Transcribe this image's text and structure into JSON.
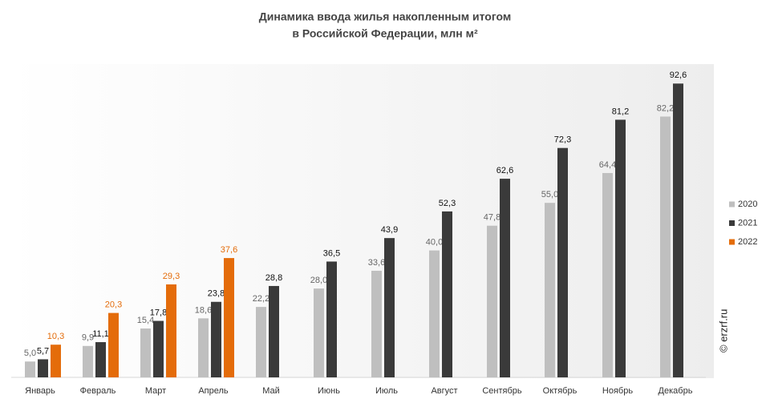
{
  "chart_data": {
    "type": "bar",
    "title": [
      "Динамика ввода жилья накопленным итогом",
      "в Российской Федерации, млн м²"
    ],
    "categories": [
      "Январь",
      "Февраль",
      "Март",
      "Апрель",
      "Май",
      "Июнь",
      "Июль",
      "Август",
      "Сентябрь",
      "Октябрь",
      "Ноябрь",
      "Декабрь"
    ],
    "series": [
      {
        "name": "2020",
        "color": "#bfbfbf",
        "label_color": "#666666",
        "values": [
          5.0,
          9.9,
          15.4,
          18.6,
          22.2,
          28.0,
          33.6,
          40.0,
          47.8,
          55.0,
          64.4,
          82.2
        ],
        "value_labels": [
          "5,0",
          "9,9",
          "15,4",
          "18,6",
          "22,2",
          "28,0",
          "33,6",
          "40,0",
          "47,8",
          "55,0",
          "64,4",
          "82,2"
        ]
      },
      {
        "name": "2021",
        "color": "#3a3a3a",
        "label_color": "#111111",
        "values": [
          5.7,
          11.1,
          17.8,
          23.8,
          28.8,
          36.5,
          43.9,
          52.3,
          62.6,
          72.3,
          81.2,
          92.6
        ],
        "value_labels": [
          "5,7",
          "11,1",
          "17,8",
          "23,8",
          "28,8",
          "36,5",
          "43,9",
          "52,3",
          "62,6",
          "72,3",
          "81,2",
          "92,6"
        ]
      },
      {
        "name": "2022",
        "color": "#e46c0a",
        "label_color": "#e46c0a",
        "values": [
          10.3,
          20.3,
          29.3,
          37.6,
          null,
          null,
          null,
          null,
          null,
          null,
          null,
          null
        ],
        "value_labels": [
          "10,3",
          "20,3",
          "29,3",
          "37,6",
          null,
          null,
          null,
          null,
          null,
          null,
          null,
          null
        ]
      }
    ],
    "ylim": [
      0,
      100
    ],
    "legend": "right",
    "watermark": "© erzrf.ru"
  }
}
